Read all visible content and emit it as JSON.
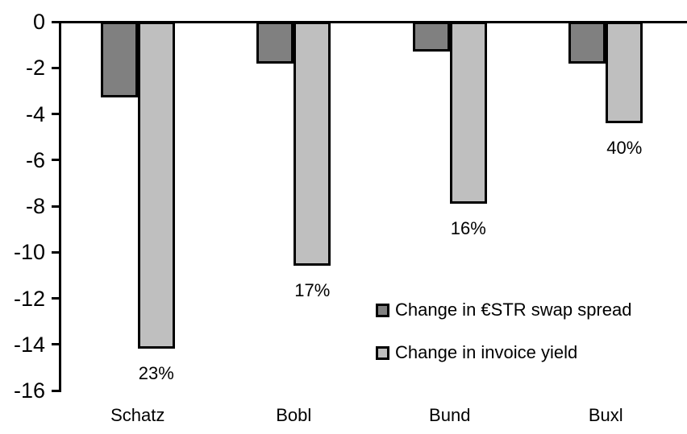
{
  "chart_data": {
    "type": "bar",
    "title": "",
    "xlabel": "",
    "ylabel": "",
    "categories": [
      "Schatz",
      "Bobl",
      "Bund",
      "Buxl"
    ],
    "series": [
      {
        "name": "Change in €STR swap spread",
        "color": "#808080",
        "values": [
          -3.3,
          -1.8,
          -1.3,
          -1.8
        ]
      },
      {
        "name": "Change in invoice yield",
        "color": "#BFBFBF",
        "values": [
          -14.2,
          -10.6,
          -7.9,
          -4.4
        ]
      }
    ],
    "bar_labels": {
      "series": "Change in invoice yield",
      "values": [
        "23%",
        "17%",
        "16%",
        "40%"
      ]
    },
    "yticks": [
      0,
      -2,
      -4,
      -6,
      -8,
      -10,
      -12,
      -14,
      -16
    ],
    "ylim": [
      0,
      -16
    ],
    "grid": false,
    "legend_position": "inside-right",
    "axis_color": "#000000",
    "background_color": "#FFFFFF"
  }
}
